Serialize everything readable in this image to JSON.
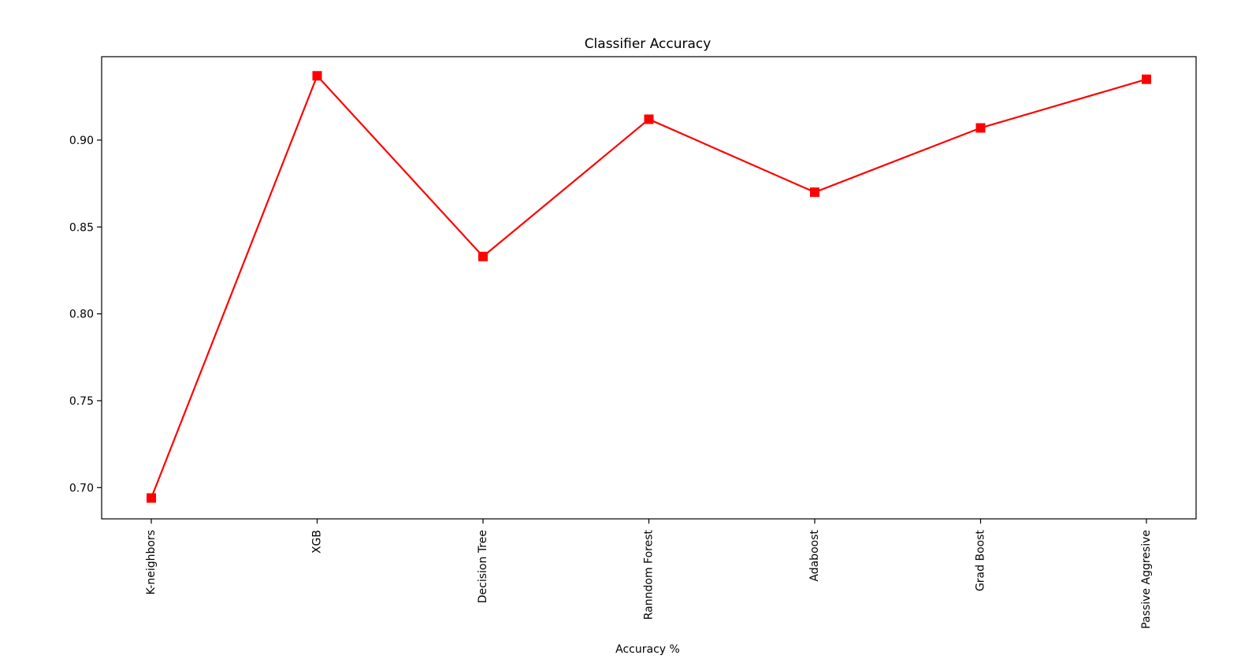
{
  "chart_data": {
    "type": "line",
    "title": "Classifier Accuracy",
    "xlabel": "Accuracy %",
    "ylabel": "",
    "categories": [
      "K-neighbors",
      "XGB",
      "Decision Tree",
      "Ranndom Forest",
      "Adaboost",
      "Grad Boost",
      "Passive Aggresive"
    ],
    "series": [
      {
        "values": [
          0.694,
          0.937,
          0.833,
          0.912,
          0.87,
          0.907,
          0.935
        ],
        "color": "#ff0000",
        "marker": "square"
      }
    ],
    "ylim": [
      0.682,
      0.948
    ],
    "yticks": [
      0.7,
      0.75,
      0.8,
      0.85,
      0.9
    ],
    "ytick_labels": [
      "0.70",
      "0.75",
      "0.80",
      "0.85",
      "0.90"
    ],
    "grid": false,
    "legend": "none"
  }
}
